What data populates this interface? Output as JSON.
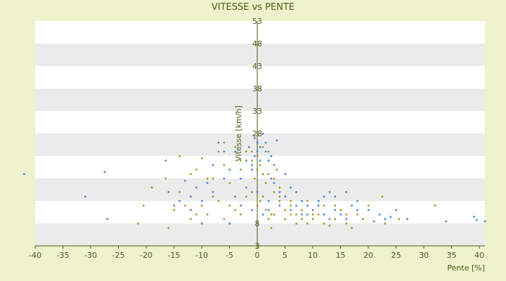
{
  "chart_data": {
    "type": "scatter",
    "title": "VITESSE vs PENTE",
    "xlabel": "Pente [%]",
    "ylabel": "Vitesse [km/h]",
    "xlim": [
      -40,
      41
    ],
    "ylim": [
      3,
      53
    ],
    "x_ticks": [
      -40,
      -35,
      -30,
      -25,
      -20,
      -15,
      -10,
      -5,
      0,
      5,
      10,
      15,
      20,
      25,
      30,
      35,
      40
    ],
    "y_ticks": [
      53,
      48,
      43,
      38,
      33,
      28,
      8,
      3
    ],
    "band_edges": [
      53,
      48,
      43,
      38,
      33,
      28,
      23,
      18,
      13,
      8,
      3
    ],
    "colors": {
      "background": "#eef3cd",
      "plot_band_light": "#ffffff",
      "plot_band_dark": "#ebebeb",
      "axis": "#4f5a1a",
      "series_blue": "#2f7fd2",
      "series_olive": "#9a8f10"
    },
    "series": [
      {
        "color_key": "series_blue",
        "points": [
          [
            -42,
            19
          ],
          [
            -31,
            14
          ],
          [
            -27.5,
            19.5
          ],
          [
            -27,
            9
          ],
          [
            -16.5,
            22
          ],
          [
            -16,
            15
          ],
          [
            -15,
            12
          ],
          [
            -13,
            17.5
          ],
          [
            -12,
            14
          ],
          [
            -10,
            13
          ],
          [
            -8,
            15
          ],
          [
            -7,
            26
          ],
          [
            -6,
            24
          ],
          [
            -5,
            20
          ],
          [
            -4,
            24
          ],
          [
            -3,
            18
          ],
          [
            -2,
            22
          ],
          [
            -1.5,
            25
          ],
          [
            -1,
            21
          ],
          [
            -0.5,
            23
          ],
          [
            0,
            24
          ],
          [
            0.5,
            25
          ],
          [
            1,
            28
          ],
          [
            1.5,
            26
          ],
          [
            2,
            22
          ],
          [
            2.5,
            18
          ],
          [
            3,
            17
          ],
          [
            3.5,
            26.5
          ],
          [
            4,
            15
          ],
          [
            5,
            14
          ],
          [
            6,
            16
          ],
          [
            7,
            12
          ],
          [
            8,
            13
          ],
          [
            9,
            12
          ],
          [
            10,
            11
          ],
          [
            11,
            13
          ],
          [
            12,
            14
          ],
          [
            13,
            15
          ],
          [
            14,
            11
          ],
          [
            15,
            10
          ],
          [
            16,
            15
          ],
          [
            17,
            12
          ],
          [
            18,
            13
          ],
          [
            19,
            9
          ],
          [
            20,
            11
          ],
          [
            22,
            10
          ],
          [
            23,
            9
          ],
          [
            25,
            11
          ],
          [
            27,
            9
          ],
          [
            34,
            8.5
          ],
          [
            39,
            9.5
          ],
          [
            39.5,
            8.8
          ],
          [
            41,
            8.5
          ],
          [
            -10,
            8
          ],
          [
            -12,
            11
          ],
          [
            -14,
            13
          ],
          [
            -5,
            8
          ],
          [
            2,
            11
          ],
          [
            4,
            12
          ],
          [
            6,
            11
          ],
          [
            8,
            10
          ],
          [
            10,
            9
          ],
          [
            12,
            10
          ],
          [
            -3,
            12
          ],
          [
            0,
            15
          ],
          [
            1,
            19
          ],
          [
            -2,
            16
          ],
          [
            -1,
            20
          ],
          [
            0.5,
            22
          ],
          [
            3,
            21
          ],
          [
            5,
            19
          ],
          [
            -6,
            18
          ],
          [
            -8,
            21
          ],
          [
            -9,
            17
          ],
          [
            14,
            14
          ],
          [
            16,
            9
          ],
          [
            18,
            11
          ],
          [
            21,
            8.5
          ],
          [
            24,
            9.5
          ],
          [
            -11,
            16
          ],
          [
            -4,
            14
          ],
          [
            2,
            13
          ],
          [
            7,
            15
          ],
          [
            9,
            10
          ],
          [
            11,
            12
          ],
          [
            13,
            9
          ],
          [
            -1,
            11
          ],
          [
            1,
            10
          ],
          [
            0,
            26
          ],
          [
            -0.5,
            27
          ],
          [
            1.5,
            24
          ],
          [
            2.5,
            23
          ]
        ]
      },
      {
        "color_key": "series_olive",
        "points": [
          [
            -21.5,
            8
          ],
          [
            -20.5,
            12
          ],
          [
            -19,
            16
          ],
          [
            -16.5,
            18
          ],
          [
            -16,
            7
          ],
          [
            -14,
            23
          ],
          [
            -12,
            19
          ],
          [
            -11,
            10
          ],
          [
            -10,
            22.5
          ],
          [
            -9,
            18
          ],
          [
            -8,
            14
          ],
          [
            -7,
            24
          ],
          [
            -6,
            21
          ],
          [
            -5,
            17
          ],
          [
            -4,
            25
          ],
          [
            -3,
            20
          ],
          [
            -2,
            24
          ],
          [
            -1,
            22
          ],
          [
            -0.5,
            18
          ],
          [
            0,
            20
          ],
          [
            0.5,
            21
          ],
          [
            1,
            19
          ],
          [
            1.5,
            17
          ],
          [
            2,
            24
          ],
          [
            2.5,
            7
          ],
          [
            3,
            15
          ],
          [
            3.5,
            20
          ],
          [
            4,
            13
          ],
          [
            5,
            11
          ],
          [
            6,
            12
          ],
          [
            7,
            10
          ],
          [
            8,
            11
          ],
          [
            9,
            13
          ],
          [
            10,
            9
          ],
          [
            11,
            10
          ],
          [
            12,
            12
          ],
          [
            13,
            7.5
          ],
          [
            14,
            9
          ],
          [
            15,
            11
          ],
          [
            16,
            10
          ],
          [
            17,
            7
          ],
          [
            18,
            10
          ],
          [
            20,
            12
          ],
          [
            22.5,
            14
          ],
          [
            23,
            8
          ],
          [
            25.5,
            9
          ],
          [
            32,
            12
          ],
          [
            -15,
            11
          ],
          [
            -13,
            12
          ],
          [
            -5,
            12
          ],
          [
            -3,
            10
          ],
          [
            -2,
            14
          ],
          [
            0,
            12
          ],
          [
            1,
            14
          ],
          [
            2,
            9
          ],
          [
            3,
            10
          ],
          [
            4,
            16
          ],
          [
            5,
            9
          ],
          [
            6,
            10
          ],
          [
            7,
            8
          ],
          [
            8,
            9
          ],
          [
            -7,
            13
          ],
          [
            -9,
            10
          ],
          [
            -6,
            9
          ],
          [
            -4,
            11
          ],
          [
            -1,
            15
          ],
          [
            0.5,
            13
          ],
          [
            1.5,
            11
          ],
          [
            2.5,
            10
          ],
          [
            -10,
            12
          ],
          [
            -8,
            18
          ],
          [
            -6,
            26
          ],
          [
            -3,
            22
          ],
          [
            -1,
            24
          ],
          [
            0,
            23
          ],
          [
            1,
            25
          ],
          [
            2,
            19
          ],
          [
            3,
            18
          ],
          [
            9,
            8
          ],
          [
            10,
            10
          ],
          [
            12,
            8
          ],
          [
            14,
            12
          ],
          [
            16,
            8
          ],
          [
            19,
            9
          ],
          [
            -12,
            9
          ],
          [
            -14,
            15
          ],
          [
            -11,
            20
          ],
          [
            4,
            14
          ],
          [
            6,
            13
          ]
        ]
      }
    ]
  }
}
